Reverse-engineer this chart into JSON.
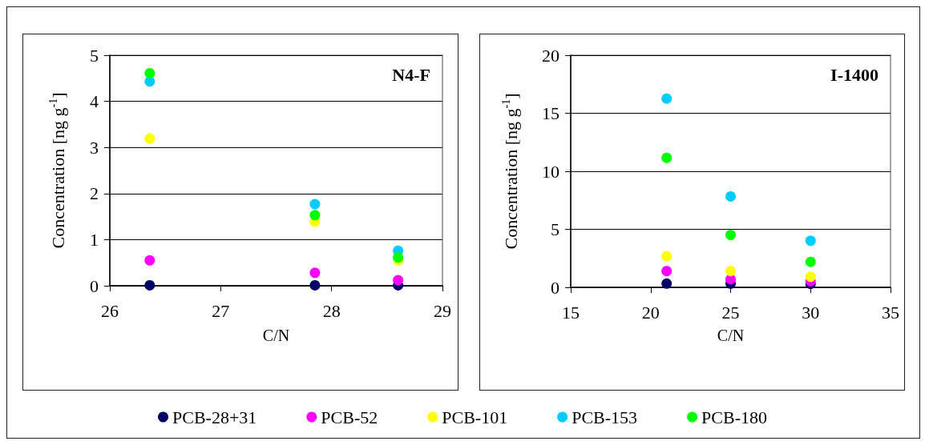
{
  "chart_data": [
    {
      "type": "scatter",
      "title": "N4-F",
      "xlabel": "C/N",
      "ylabel": "Concentration [ng g$^{-1}$]",
      "x": [
        26.36,
        27.85,
        28.6
      ],
      "xlim": [
        26,
        29
      ],
      "xticks": [
        26,
        27,
        28,
        29
      ],
      "ylim": [
        0,
        5
      ],
      "yticks": [
        0,
        1,
        2,
        3,
        4,
        5
      ],
      "grid": "y",
      "marker": "circle",
      "legend": "bottom",
      "series": [
        {
          "name": "PCB-28+31",
          "color": "#000066",
          "values": [
            0.01,
            0.01,
            0.01
          ]
        },
        {
          "name": "PCB-52",
          "color": "#ff00ff",
          "values": [
            0.55,
            0.28,
            0.12
          ]
        },
        {
          "name": "PCB-101",
          "color": "#ffff00",
          "values": [
            3.19,
            1.39,
            0.55
          ]
        },
        {
          "name": "PCB-153",
          "color": "#00ccff",
          "values": [
            4.43,
            1.77,
            0.76
          ]
        },
        {
          "name": "PCB-180",
          "color": "#00ff00",
          "values": [
            4.61,
            1.53,
            0.61
          ]
        }
      ]
    },
    {
      "type": "scatter",
      "title": "I-1400",
      "xlabel": "C/N",
      "ylabel": "Concentration [ng g$^{-1}$]",
      "x": [
        21,
        25,
        30
      ],
      "xlim": [
        15,
        35
      ],
      "xticks": [
        15,
        20,
        25,
        30,
        35
      ],
      "ylim": [
        0,
        20
      ],
      "yticks": [
        0,
        5,
        10,
        15,
        20
      ],
      "grid": "y",
      "marker": "circle",
      "legend": false,
      "series": [
        {
          "color": "#000066",
          "values": [
            0.32,
            0.32,
            0.3
          ]
        },
        {
          "color": "#ff00ff",
          "values": [
            1.4,
            0.69,
            0.52
          ]
        },
        {
          "color": "#ffff00",
          "values": [
            2.68,
            1.4,
            0.91
          ]
        },
        {
          "color": "#00ccff",
          "values": [
            16.26,
            7.83,
            4.01
          ]
        },
        {
          "color": "#00ff00",
          "values": [
            11.16,
            4.51,
            2.19
          ]
        }
      ]
    }
  ]
}
